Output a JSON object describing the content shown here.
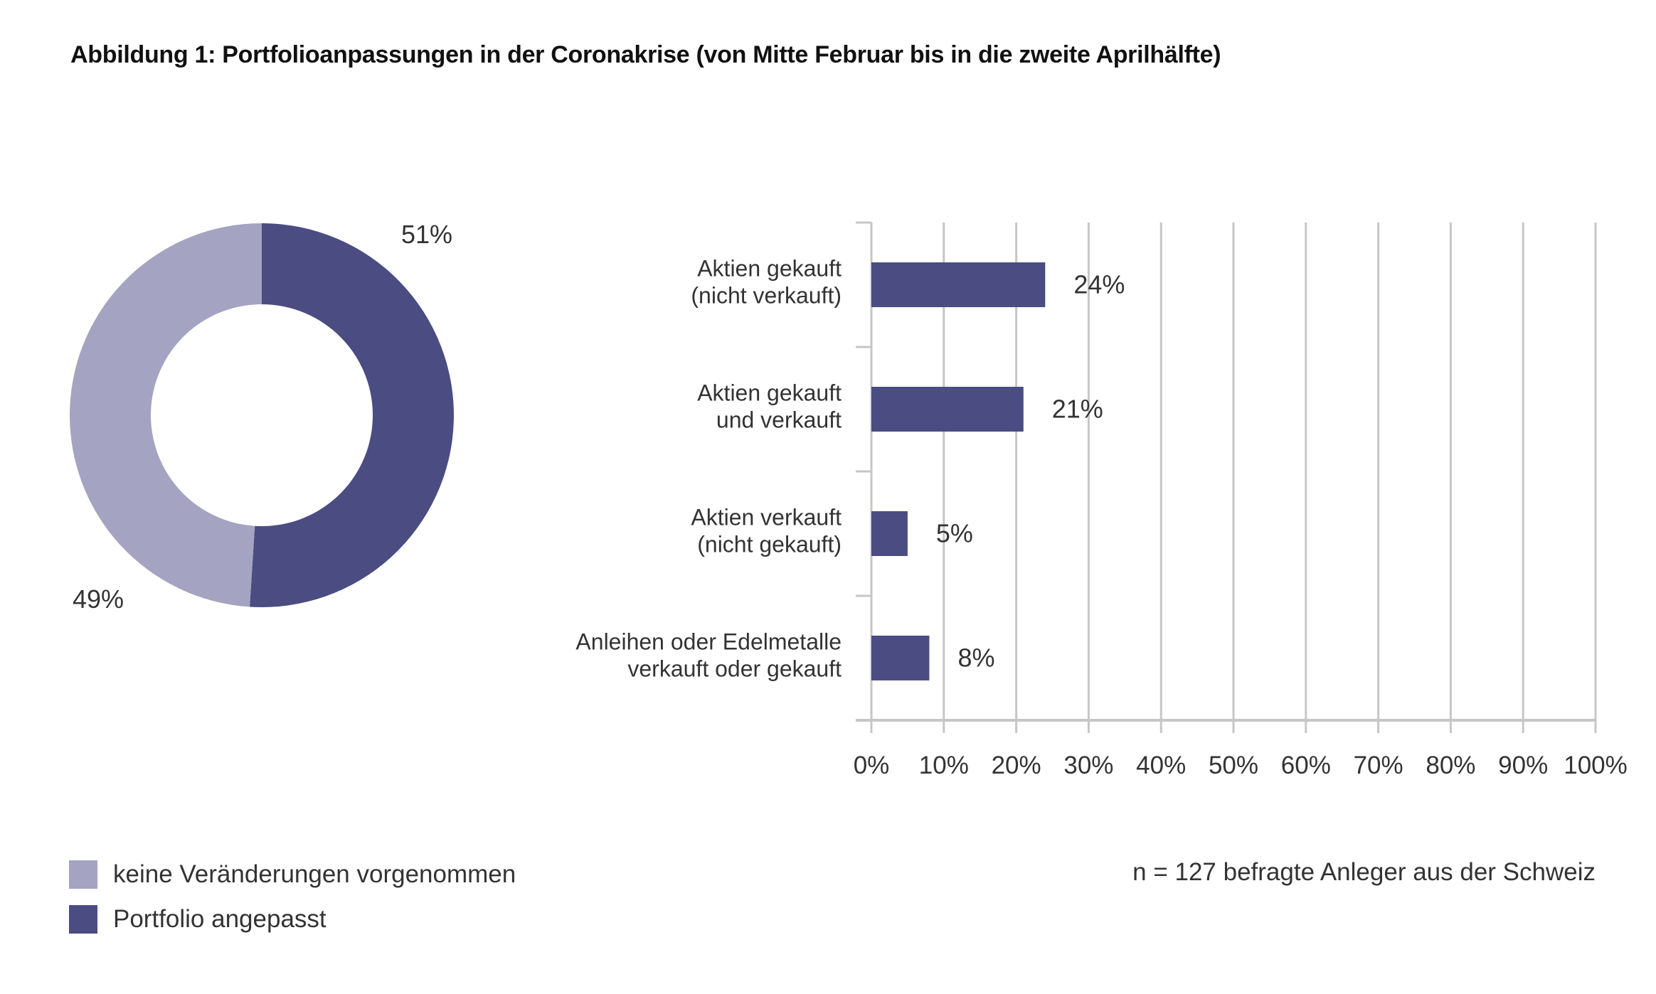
{
  "title": "Abbildung 1: Portfolioanpassungen in der Coronakrise (von Mitte Februar bis in die zweite Aprilhälfte)",
  "colors": {
    "light": "#a4a3c2",
    "dark": "#4a4c82",
    "grid": "#c6c6c6",
    "text": "#333333"
  },
  "legend": [
    {
      "label": "keine Veränderungen vorgenommen",
      "color": "#a4a3c2"
    },
    {
      "label": "Portfolio angepasst",
      "color": "#4a4c82"
    }
  ],
  "note": "n = 127 befragte Anleger aus der Schweiz",
  "chart_data": [
    {
      "type": "pie",
      "variant": "donut",
      "slices": [
        {
          "label": "Portfolio angepasst",
          "value": 51,
          "display": "51%",
          "color": "#4a4c82"
        },
        {
          "label": "keine Veränderungen vorgenommen",
          "value": 49,
          "display": "49%",
          "color": "#a4a3c2"
        }
      ]
    },
    {
      "type": "bar",
      "orientation": "horizontal",
      "categories": [
        [
          "Aktien gekauft",
          "(nicht verkauft)"
        ],
        [
          "Aktien gekauft",
          "und verkauft"
        ],
        [
          "Aktien verkauft",
          "(nicht gekauft)"
        ],
        [
          "Anleihen oder Edelmetalle",
          "verkauft oder gekauft"
        ]
      ],
      "values": [
        24,
        21,
        5,
        8
      ],
      "data_labels": [
        "24%",
        "21%",
        "5%",
        "8%"
      ],
      "xlim": [
        0,
        100
      ],
      "xticks": [
        0,
        10,
        20,
        30,
        40,
        50,
        60,
        70,
        80,
        90,
        100
      ],
      "xtick_labels": [
        "0%",
        "10%",
        "20%",
        "30%",
        "40%",
        "50%",
        "60%",
        "70%",
        "80%",
        "90%",
        "100%"
      ],
      "grid": true,
      "xlabel": "",
      "ylabel": ""
    }
  ]
}
